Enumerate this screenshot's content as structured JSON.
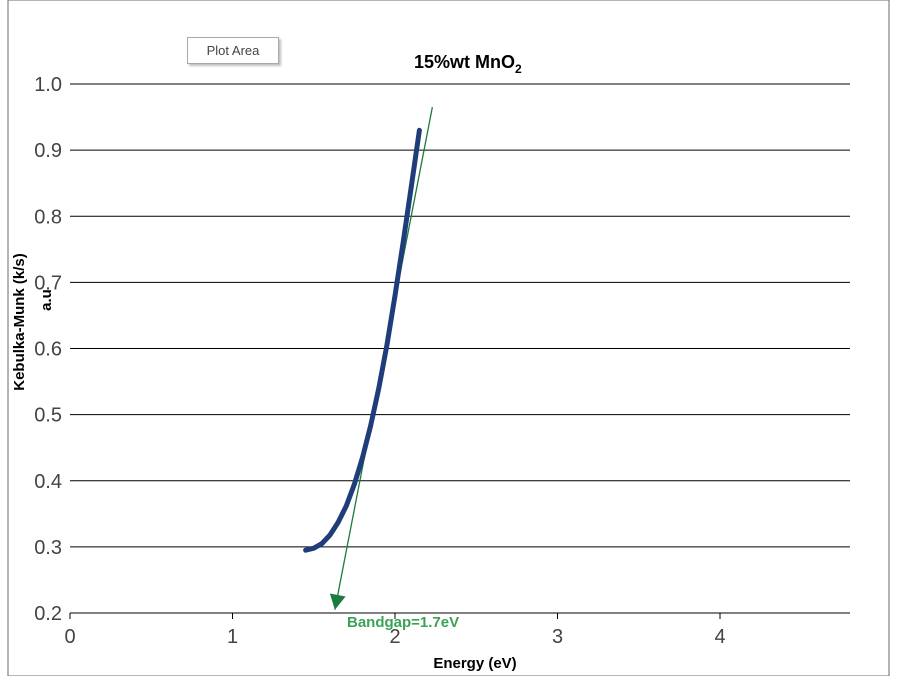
{
  "plot_area_tag": "Plot Area",
  "colors": {
    "grid": "#000000",
    "curve": "#1f3d7a",
    "tangent": "#1d7a3f",
    "annotation": "#3aa356",
    "frame": "#6a6a6a"
  },
  "chart_data": {
    "type": "line",
    "title": "15%wt MnO",
    "title_subscript": "2",
    "xlabel": "Energy (eV)",
    "ylabel_line1": "Kebulka-Munk (k/s)",
    "ylabel_line2": "a.u",
    "xlim": [
      0,
      4.8
    ],
    "ylim": [
      0.2,
      1.0
    ],
    "x_ticks": [
      0,
      1,
      2,
      3,
      4
    ],
    "y_ticks": [
      0.2,
      0.3,
      0.4,
      0.5,
      0.6,
      0.7,
      0.8,
      0.9,
      1.0
    ],
    "x_tick_labels": [
      "0",
      "1",
      "2",
      "3",
      "4"
    ],
    "y_tick_labels": [
      "0.2",
      "0.3",
      "0.4",
      "0.5",
      "0.6",
      "0.7",
      "0.8",
      "0.9",
      "1.0"
    ],
    "grid": "horizontal",
    "series": [
      {
        "x": [
          1.45,
          1.5,
          1.55,
          1.6,
          1.65,
          1.7,
          1.75,
          1.8,
          1.85,
          1.9,
          1.95,
          2.0,
          2.05,
          2.1,
          2.15
        ],
        "y": [
          0.295,
          0.298,
          0.305,
          0.318,
          0.337,
          0.362,
          0.395,
          0.435,
          0.483,
          0.54,
          0.605,
          0.68,
          0.76,
          0.845,
          0.93
        ]
      }
    ],
    "tangent_line": {
      "x": [
        1.63,
        2.23
      ],
      "y": [
        0.205,
        0.965
      ]
    },
    "annotation": {
      "text": "Bandgap=1.7eV",
      "x": 1.65,
      "y": 0.205
    }
  }
}
